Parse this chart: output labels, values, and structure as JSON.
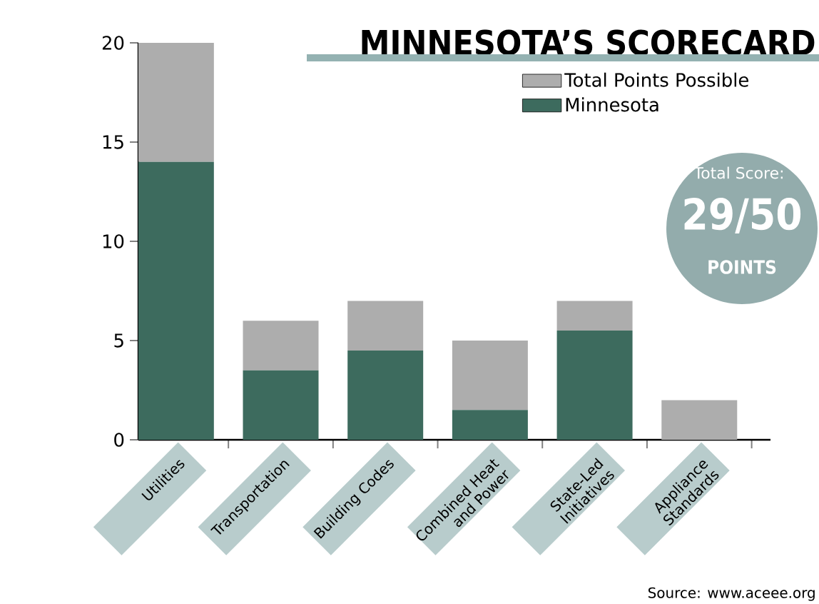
{
  "chart_data": {
    "type": "bar",
    "title": "MINNESOTA’S SCORECARD",
    "categories": [
      "Utilities",
      "Transportation",
      "Building Codes",
      "Combined Heat and Power",
      "State-Led Initiatives",
      "Appliance Standards"
    ],
    "series": [
      {
        "name": "Minnesota",
        "color": "#3d6b5e",
        "values": [
          14,
          3.5,
          4.5,
          1.5,
          5.5,
          0
        ]
      },
      {
        "name": "Total Points Possible",
        "color": "#adadad",
        "values": [
          6,
          2.5,
          2.5,
          3.5,
          1.5,
          2
        ]
      }
    ],
    "stacked": true,
    "ylim": [
      0,
      20
    ],
    "yticks": [
      0,
      5,
      10,
      15,
      20
    ],
    "grid": false,
    "legend": "top right",
    "annotations": [
      "Total Score:",
      "29/50",
      "POINTS",
      "Source: www.aceee.org"
    ]
  }
}
